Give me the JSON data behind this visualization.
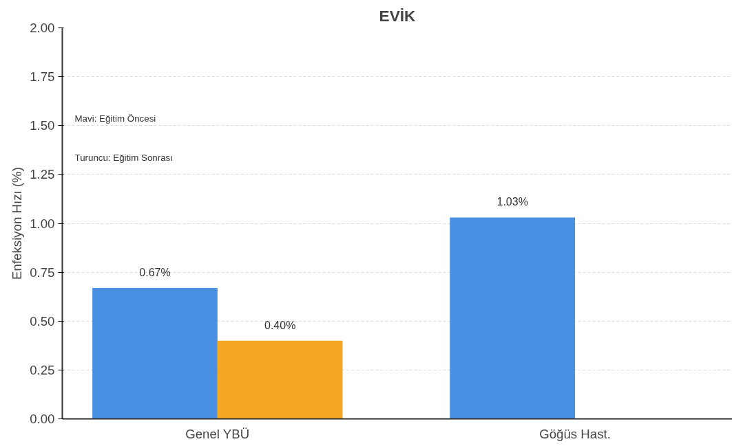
{
  "chart_data": {
    "type": "bar",
    "title": "EVİK",
    "ylabel": "Enfeksiyon Hızı (%)",
    "categories": [
      "Genel YBÜ",
      "Göğüs Hast."
    ],
    "series": [
      {
        "color": "#4a90e2",
        "values": [
          0.67,
          1.03
        ],
        "value_labels": [
          "0.67%",
          "1.03%"
        ]
      },
      {
        "color": "#f5a623",
        "values": [
          0.4,
          null
        ],
        "value_labels": [
          "0.40%",
          null
        ]
      }
    ],
    "ylim": [
      0,
      2
    ],
    "yticks": [
      {
        "value": 0,
        "label": "0.00"
      },
      {
        "value": 0.25,
        "label": "0.25"
      },
      {
        "value": 0.5,
        "label": "0.50"
      },
      {
        "value": 0.75,
        "label": "0.75"
      },
      {
        "value": 1,
        "label": "1.00"
      },
      {
        "value": 1.25,
        "label": "1.25"
      },
      {
        "value": 1.5,
        "label": "1.50"
      },
      {
        "value": 1.75,
        "label": "1.75"
      },
      {
        "value": 2,
        "label": "2.00"
      }
    ],
    "grid": "y",
    "annotations": [
      "Mavi: Eğitim Öncesi",
      "Turuncu: Eğitim Sonrası"
    ]
  }
}
